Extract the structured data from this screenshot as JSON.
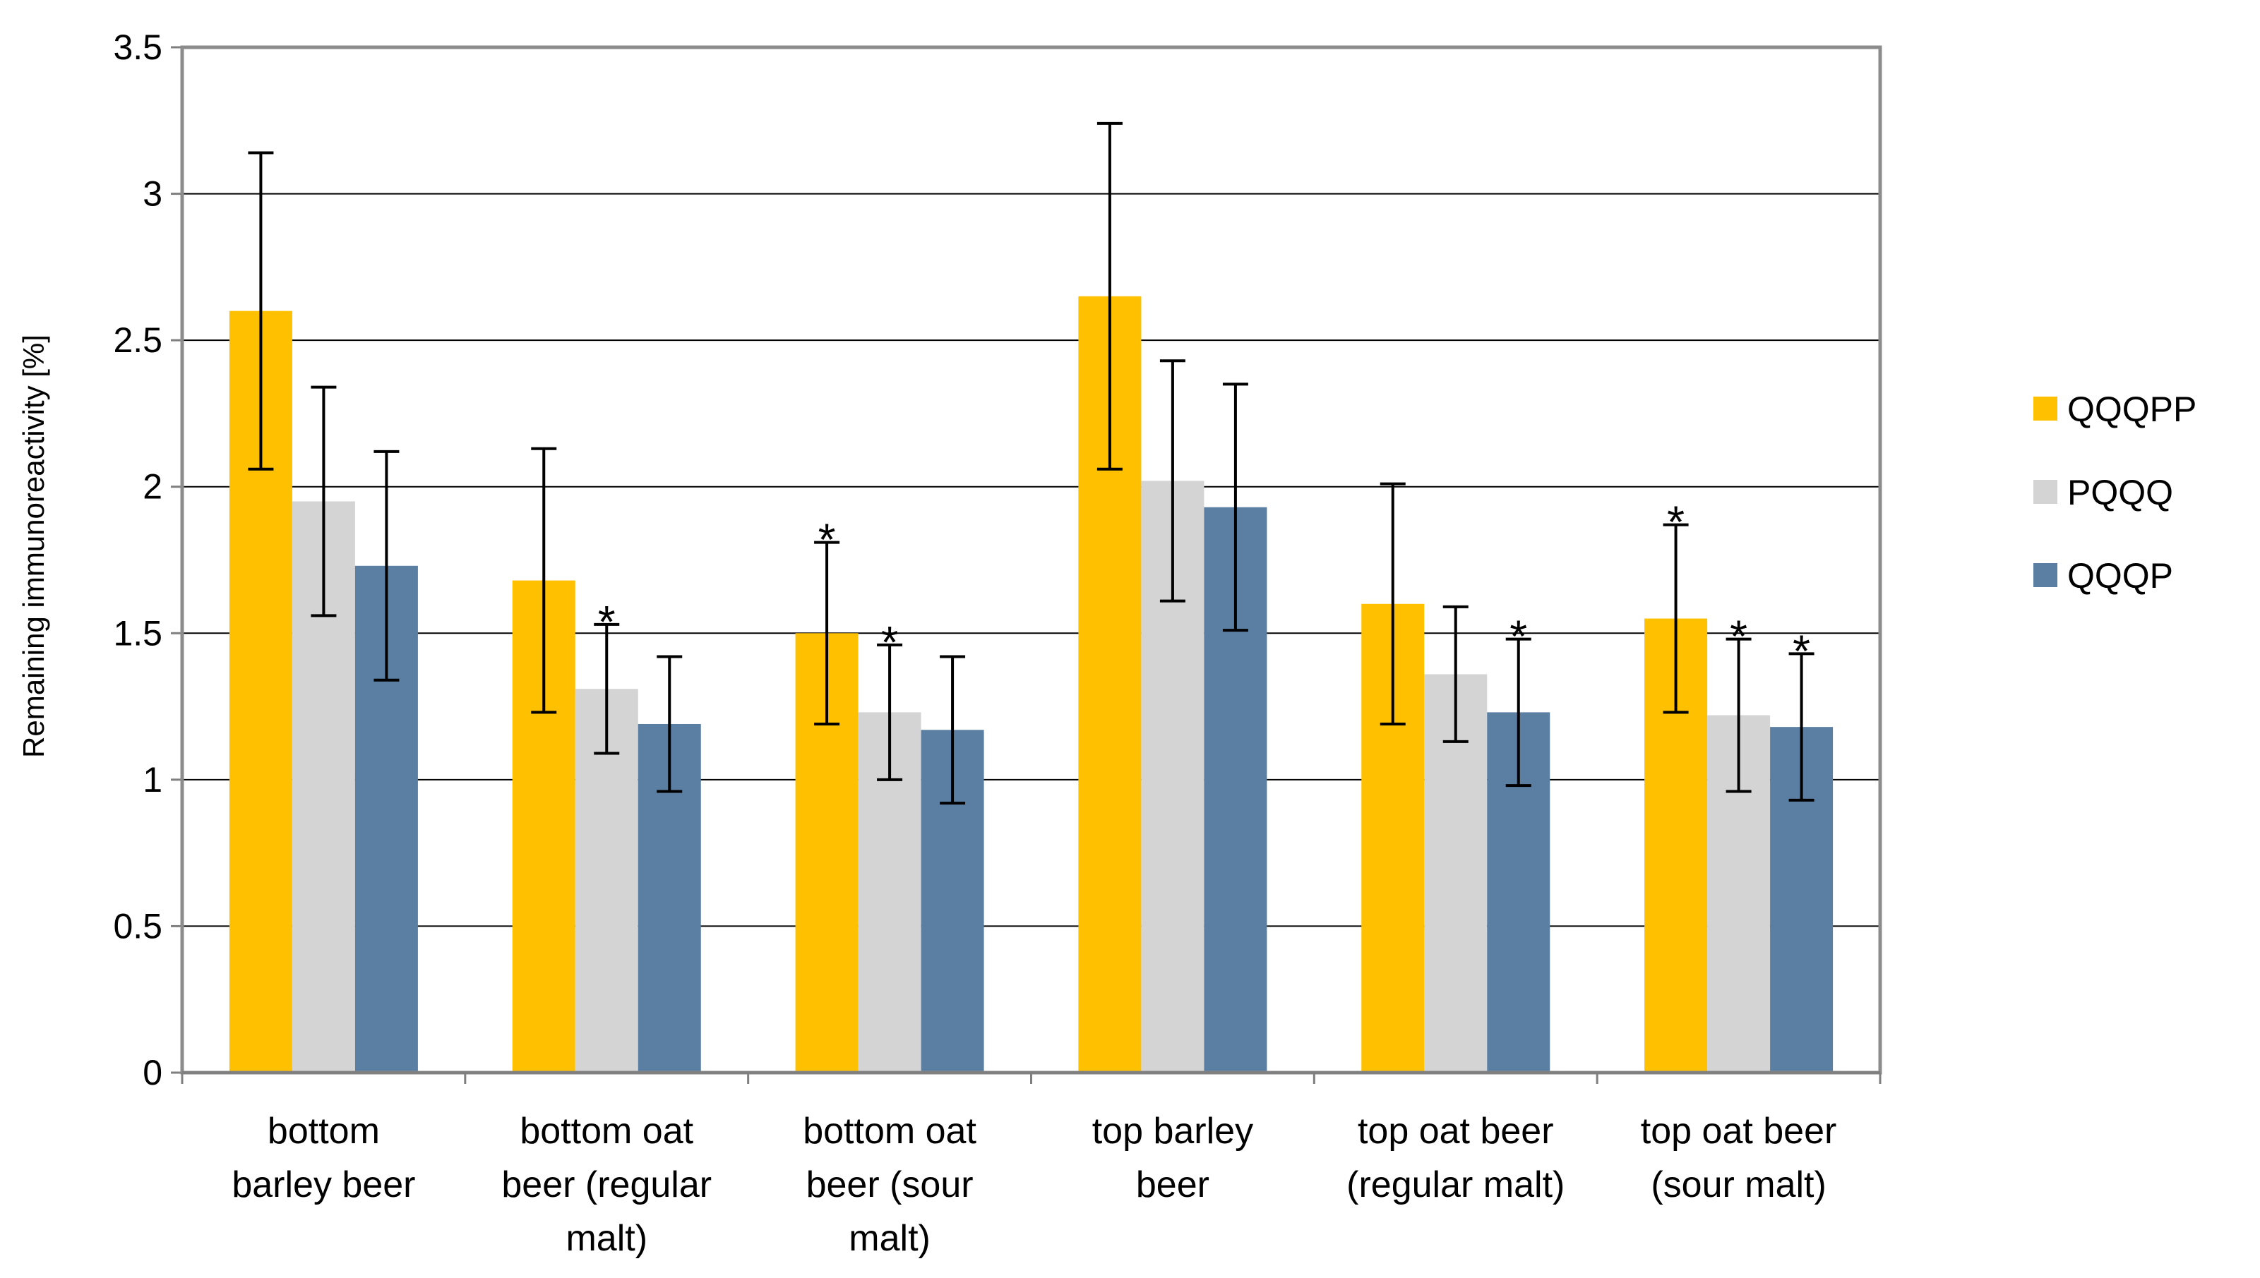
{
  "chart_data": {
    "type": "bar",
    "title": "",
    "xlabel": "",
    "ylabel": "Remaining immunoreactivity [%]",
    "ylim": [
      0,
      3.5
    ],
    "yticks": [
      "0",
      "0.5",
      "1",
      "1.5",
      "2",
      "2.5",
      "3",
      "3.5"
    ],
    "ytick_values": [
      0,
      0.5,
      1,
      1.5,
      2,
      2.5,
      3,
      3.5
    ],
    "grid": true,
    "legend_position": "right",
    "categories": [
      [
        "bottom",
        "barley beer"
      ],
      [
        "bottom oat",
        "beer (regular",
        "malt)"
      ],
      [
        "bottom oat",
        "beer (sour",
        "malt)"
      ],
      [
        "top barley",
        "beer"
      ],
      [
        "top oat beer",
        "(regular malt)"
      ],
      [
        "top oat beer",
        "(sour malt)"
      ]
    ],
    "series": [
      {
        "name": "QQQPP",
        "color": "#FFC000",
        "values": [
          2.6,
          1.68,
          1.5,
          2.65,
          1.6,
          1.55
        ],
        "err_low": [
          2.06,
          1.23,
          1.19,
          2.06,
          1.19,
          1.23
        ],
        "err_high": [
          3.14,
          2.13,
          1.81,
          3.24,
          2.01,
          1.87
        ],
        "significant": [
          false,
          false,
          true,
          false,
          false,
          true
        ]
      },
      {
        "name": "PQQQ",
        "color": "#D4D4D4",
        "values": [
          1.95,
          1.31,
          1.23,
          2.02,
          1.36,
          1.22
        ],
        "err_low": [
          1.56,
          1.09,
          1.0,
          1.61,
          1.13,
          0.96
        ],
        "err_high": [
          2.34,
          1.53,
          1.46,
          2.43,
          1.59,
          1.48
        ],
        "significant": [
          false,
          true,
          true,
          false,
          false,
          true
        ]
      },
      {
        "name": "QQQP",
        "color": "#5B7FA3",
        "values": [
          1.73,
          1.19,
          1.17,
          1.93,
          1.23,
          1.18
        ],
        "err_low": [
          1.34,
          0.96,
          0.92,
          1.51,
          0.98,
          0.93
        ],
        "err_high": [
          2.12,
          1.42,
          1.42,
          2.35,
          1.48,
          1.43
        ],
        "significant": [
          false,
          false,
          false,
          false,
          true,
          true
        ]
      }
    ],
    "significance_marker": "*"
  }
}
